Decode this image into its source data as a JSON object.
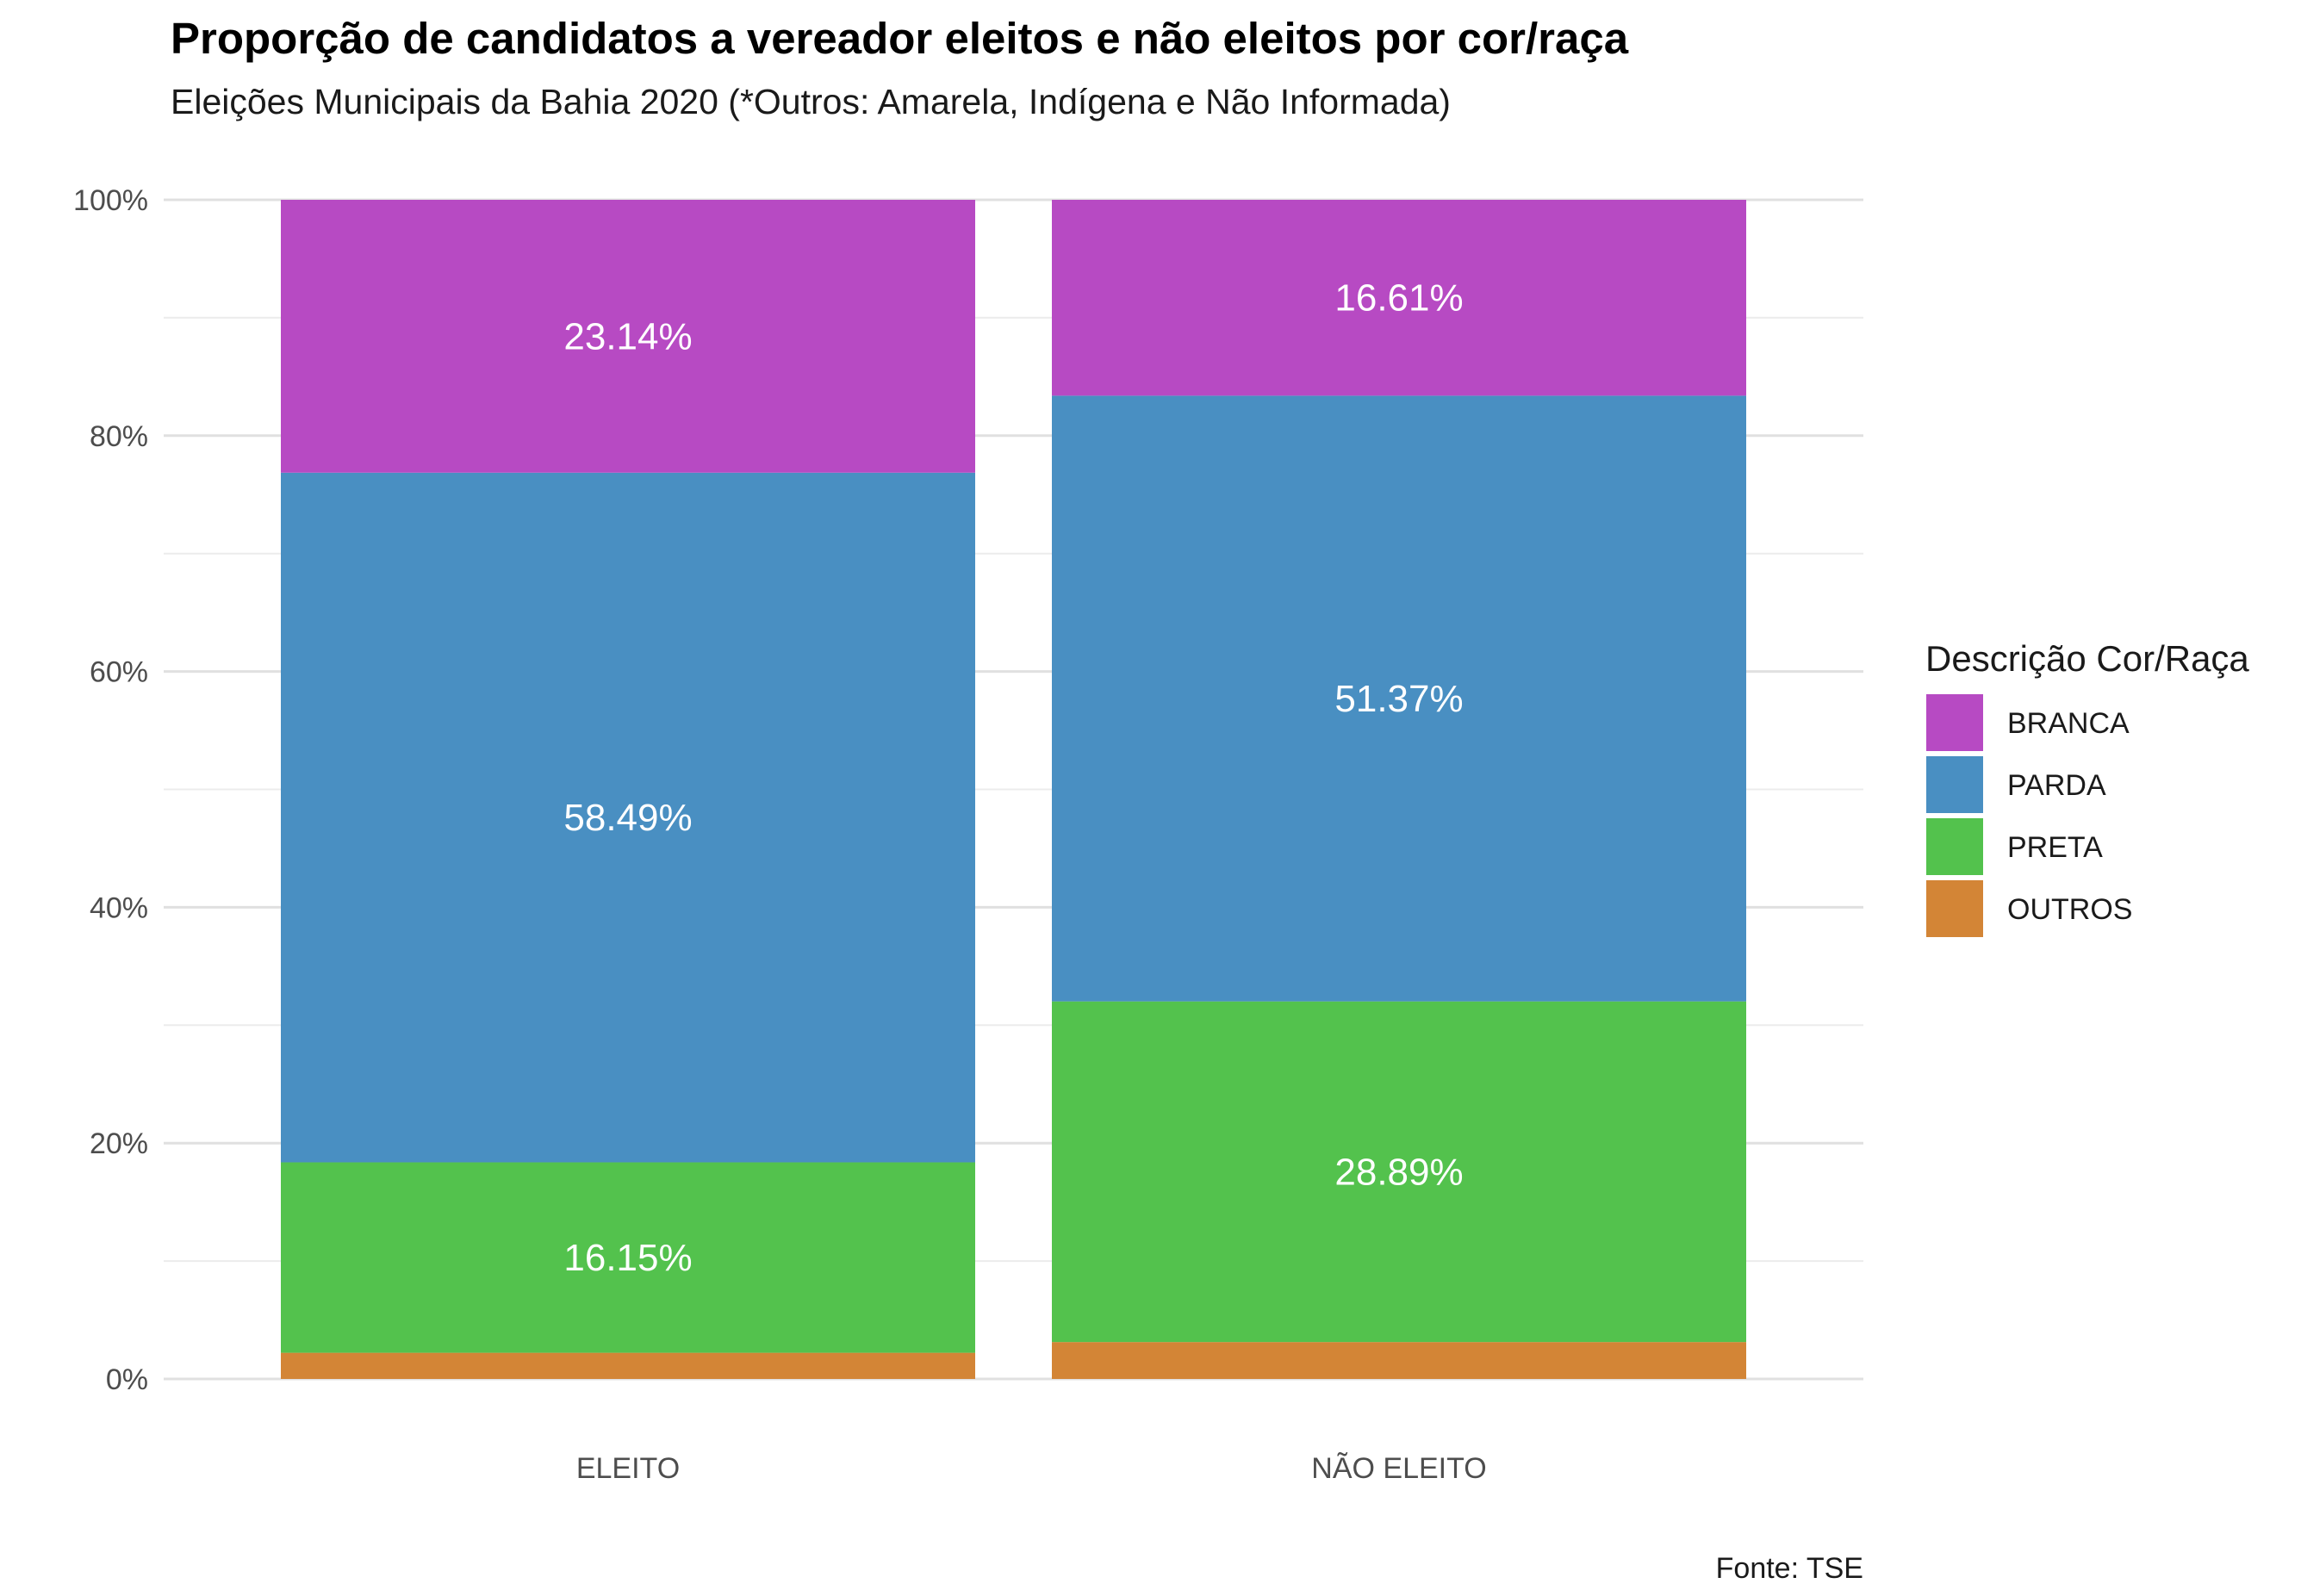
{
  "chart_data": {
    "type": "bar",
    "stacked": true,
    "title": "Proporção de candidatos a vereador eleitos e não eleitos por cor/raça",
    "subtitle": "Eleições Municipais da Bahia 2020 (*Outros: Amarela, Indígena e Não Informada)",
    "caption": "Fonte: TSE",
    "xlabel": "",
    "ylabel": "",
    "ylim": [
      0,
      100
    ],
    "y_ticks": [
      0,
      20,
      40,
      60,
      80,
      100
    ],
    "y_tick_labels": [
      "0%",
      "20%",
      "40%",
      "60%",
      "80%",
      "100%"
    ],
    "grid": true,
    "legend_title": "Descrição Cor/Raça",
    "legend_position": "right",
    "categories": [
      "ELEITO",
      "NÃO ELEITO"
    ],
    "series": [
      {
        "name": "OUTROS",
        "color": "#D38536",
        "values": [
          2.22,
          3.13
        ],
        "labels": [
          "",
          ""
        ]
      },
      {
        "name": "PRETA",
        "color": "#53C24D",
        "values": [
          16.15,
          28.89
        ],
        "labels": [
          "16.15%",
          "28.89%"
        ]
      },
      {
        "name": "PARDA",
        "color": "#498FC2",
        "values": [
          58.49,
          51.37
        ],
        "labels": [
          "58.49%",
          "51.37%"
        ]
      },
      {
        "name": "BRANCA",
        "color": "#B74AC3",
        "values": [
          23.14,
          16.61
        ],
        "labels": [
          "23.14%",
          "16.61%"
        ]
      }
    ],
    "legend_order": [
      "BRANCA",
      "PARDA",
      "PRETA",
      "OUTROS"
    ]
  }
}
